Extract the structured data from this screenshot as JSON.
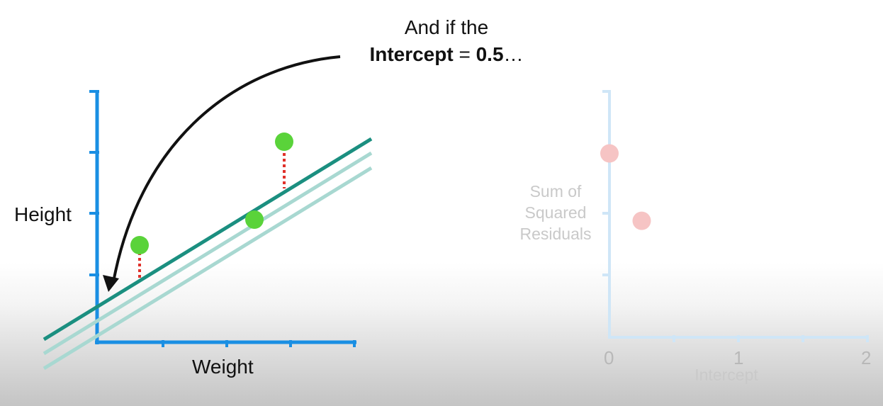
{
  "caption": {
    "line1": "And if the",
    "line2_bold_1": "Intercept",
    "line2_plain": " = ",
    "line2_bold_2": "0.5",
    "line2_tail": "…"
  },
  "left_plot": {
    "xlabel": "Weight",
    "ylabel": "Height",
    "colors": {
      "axis": "#1a8fe3",
      "current_line": "#1b8f80",
      "previous_lines": "#a8d8d1",
      "points": "#5ad33a",
      "residuals": "#e0302a",
      "arrow": "#111111"
    }
  },
  "right_plot": {
    "ylabel_line1": "Sum of",
    "ylabel_line2": "Squared",
    "ylabel_line3": "Residuals",
    "xlabel": "Intercept",
    "xticks": [
      "0",
      "1",
      "2"
    ],
    "colors": {
      "axis": "#cfe6f7",
      "points": "#f6c4c4"
    }
  },
  "chart_data": {
    "type": "scatter",
    "title": "",
    "xlabel": "Intercept",
    "ylabel": "Sum of Squared Residuals",
    "xlim": [
      0,
      2
    ],
    "x": [
      0,
      0.25
    ],
    "y": [
      3.0,
      1.9
    ]
  }
}
